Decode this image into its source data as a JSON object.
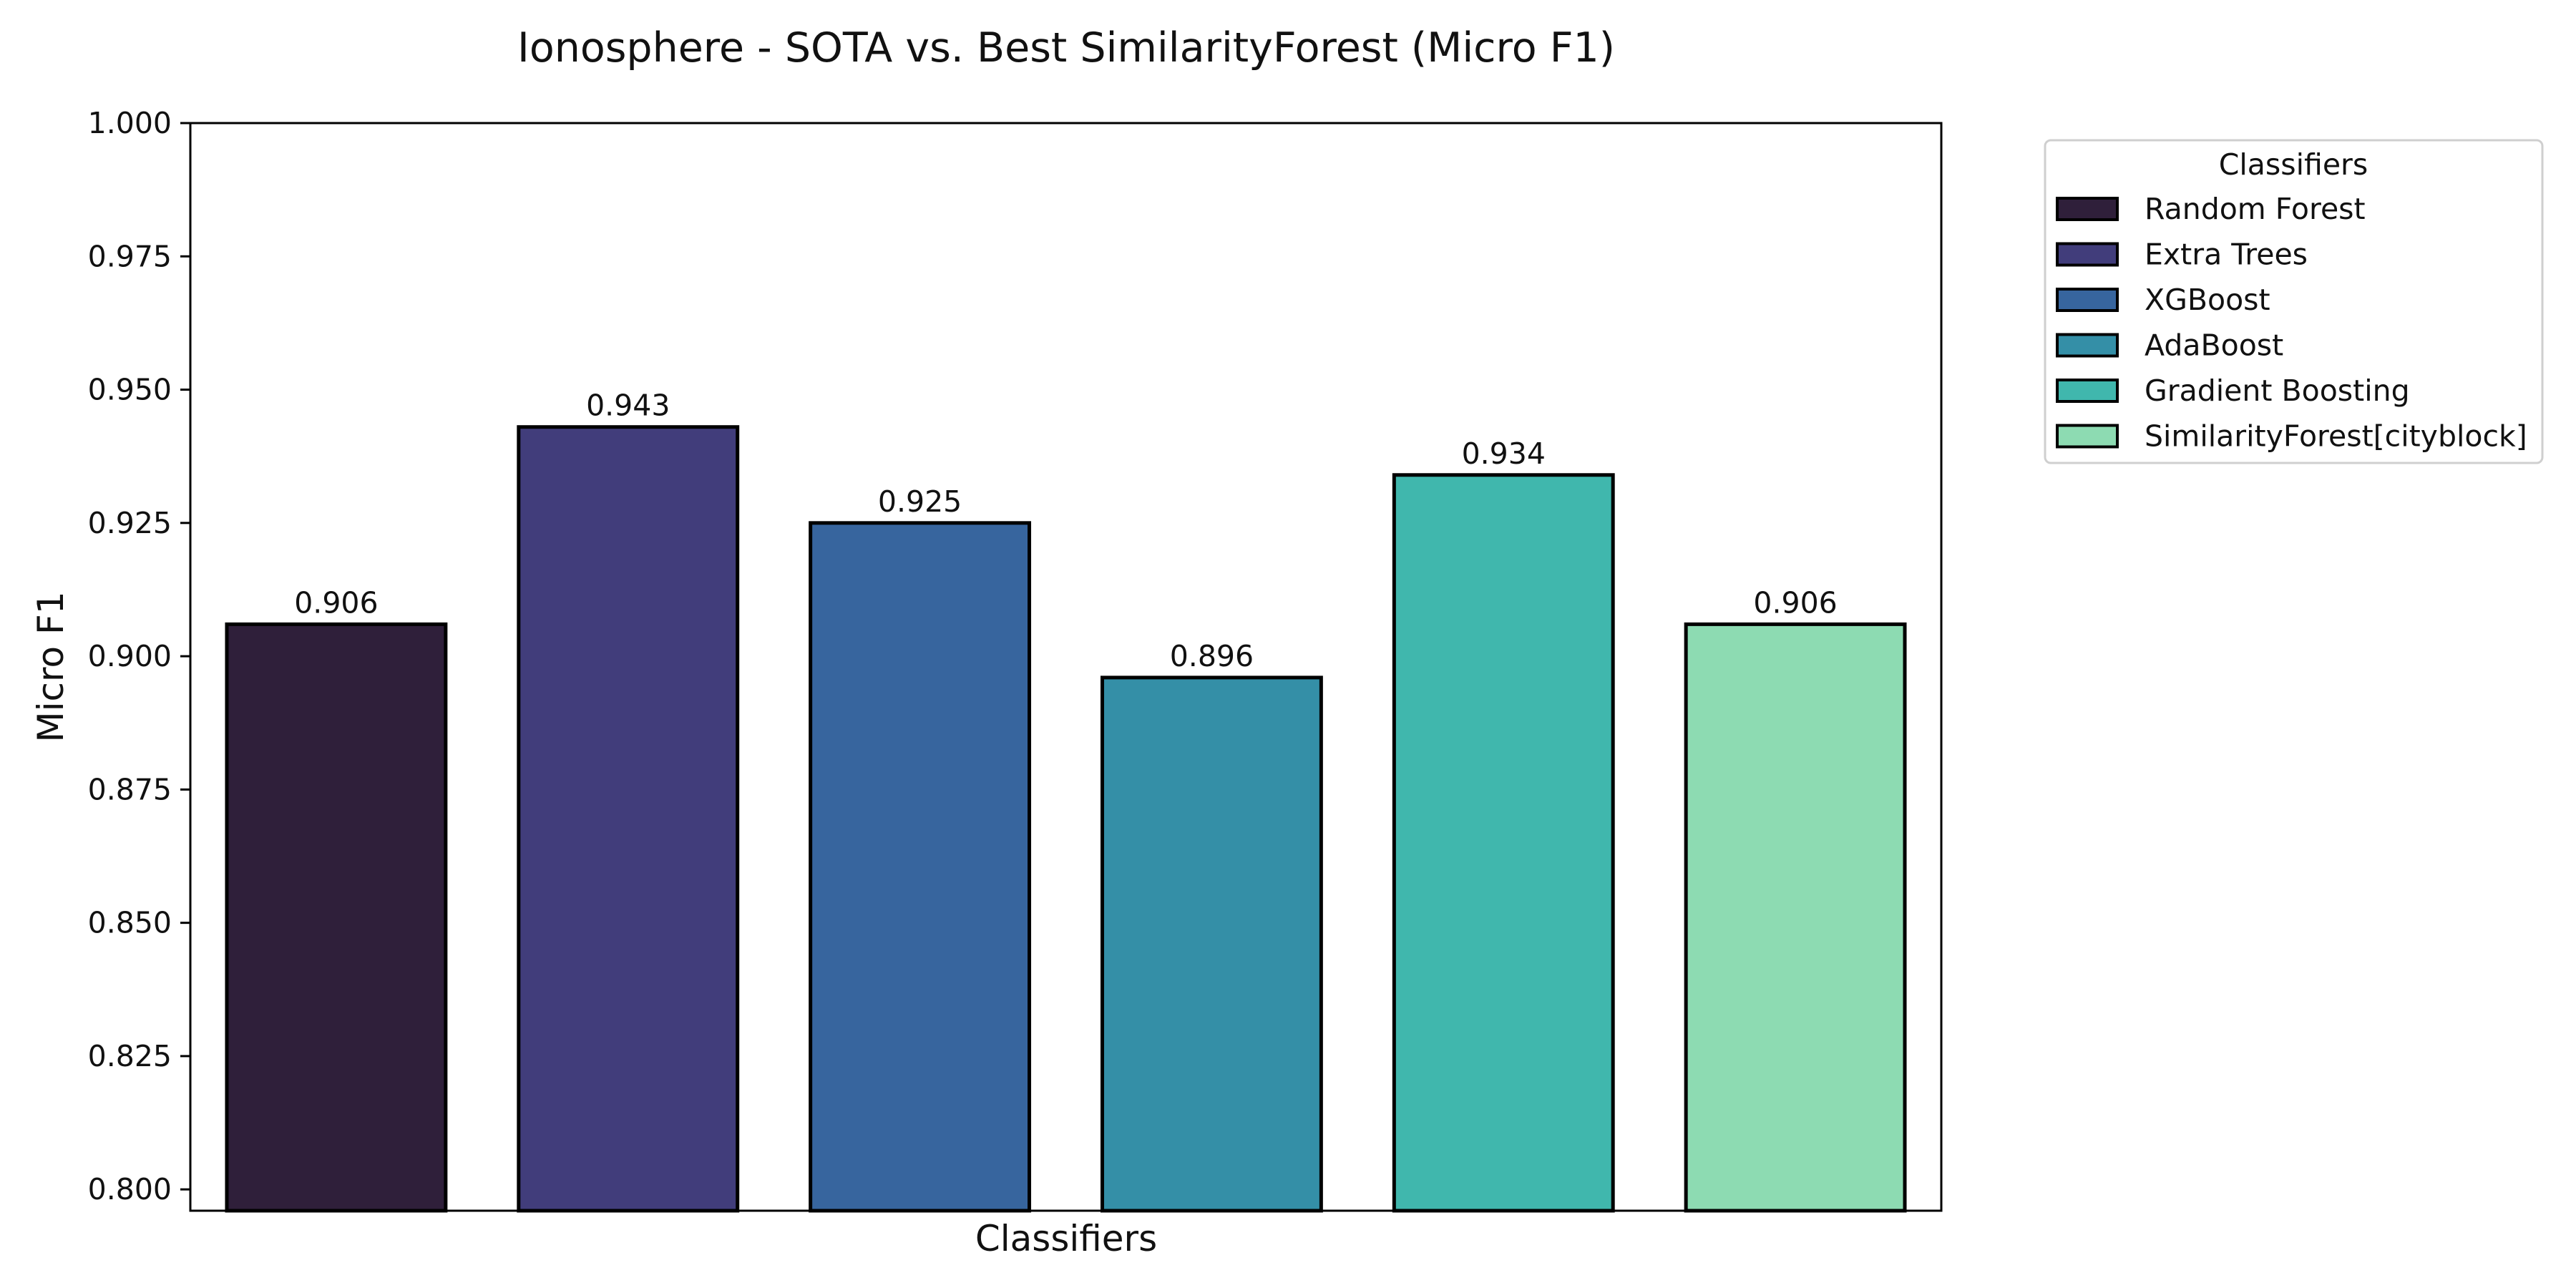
{
  "chart_data": {
    "type": "bar",
    "title": "Ionosphere - SOTA vs. Best SimilarityForest (Micro F1)",
    "xlabel": "Classifiers",
    "ylabel": "Micro F1",
    "ylim": [
      0.796,
      1.0
    ],
    "yticks": [
      0.8,
      0.825,
      0.85,
      0.875,
      0.9,
      0.925,
      0.95,
      0.975,
      1.0
    ],
    "ytick_labels": [
      "0.800",
      "0.825",
      "0.850",
      "0.875",
      "0.900",
      "0.925",
      "0.950",
      "0.975",
      "1.000"
    ],
    "categories": [
      "Random Forest",
      "Extra Trees",
      "XGBoost",
      "AdaBoost",
      "Gradient Boosting",
      "SimilarityForest[cityblock]"
    ],
    "values": [
      0.906,
      0.943,
      0.925,
      0.896,
      0.934,
      0.906
    ],
    "value_labels": [
      "0.906",
      "0.943",
      "0.925",
      "0.896",
      "0.934",
      "0.906"
    ],
    "colors": [
      "#2f1f3a",
      "#413d7b",
      "#37659e",
      "#348fa7",
      "#40b7ad",
      "#8ddbb2"
    ],
    "grid": false,
    "legend": {
      "title": "Classifiers",
      "position": "outside-top-right"
    }
  }
}
